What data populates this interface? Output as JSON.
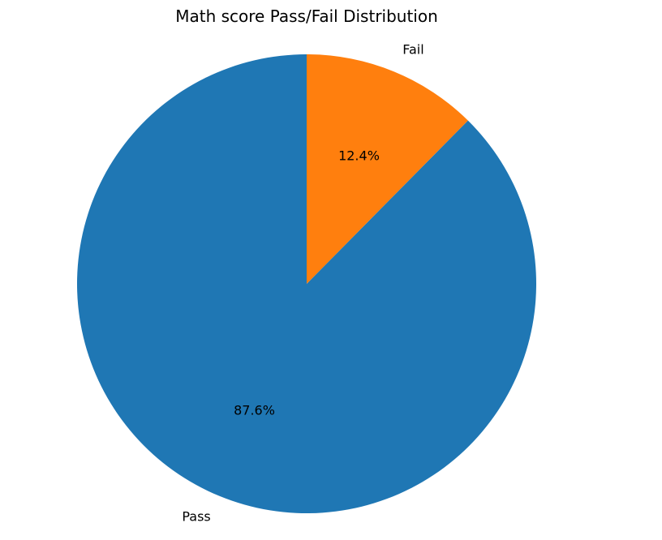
{
  "chart_data": {
    "type": "pie",
    "title": "Math score Pass/Fail Distribution",
    "slices": [
      {
        "label": "Pass",
        "value": 87.6,
        "pct_label": "87.6%",
        "color": "#1f77b4"
      },
      {
        "label": "Fail",
        "value": 12.4,
        "pct_label": "12.4%",
        "color": "#ff7f0e"
      }
    ],
    "start_angle_deg": 90,
    "direction": "counterclockwise",
    "legend": "none"
  }
}
